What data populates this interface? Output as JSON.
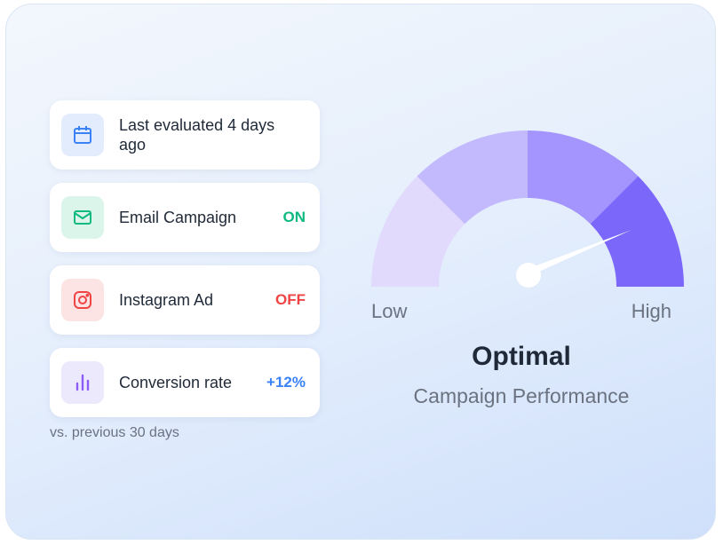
{
  "items": [
    {
      "label": "Last evaluated 4 days ago"
    },
    {
      "label": "Email Campaign",
      "status": "ON"
    },
    {
      "label": "Instagram Ad",
      "status": "OFF"
    },
    {
      "label": "Conversion rate",
      "status": "+12%"
    }
  ],
  "note": "vs. previous 30 days",
  "gauge": {
    "low": "Low",
    "high": "High",
    "title": "Optimal",
    "subtitle": "Campaign Performance"
  }
}
